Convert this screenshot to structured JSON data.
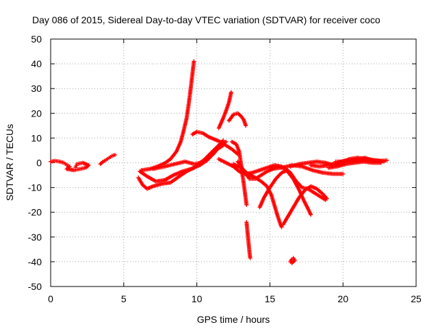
{
  "chart_data": {
    "type": "scatter",
    "title": "Day 086 of 2015, Sidereal Day-to-day VTEC variation (SDTVAR) for receiver coco",
    "xlabel": "GPS time / hours",
    "ylabel": "SDTVAR / TECUs",
    "xlim": [
      0,
      25
    ],
    "ylim": [
      -50,
      50
    ],
    "xticks": [
      0,
      5,
      10,
      15,
      20,
      25
    ],
    "yticks": [
      -50,
      -40,
      -30,
      -20,
      -10,
      0,
      10,
      20,
      30,
      40,
      50
    ],
    "grid": true,
    "marker": "+",
    "color": "#ff0000",
    "series": [
      {
        "name": "arc-early",
        "points": [
          [
            0.0,
            0.5
          ],
          [
            0.3,
            0.8
          ],
          [
            0.6,
            0.5
          ],
          [
            0.9,
            0.0
          ],
          [
            1.1,
            -0.8
          ],
          [
            1.3,
            -1.5
          ],
          [
            1.1,
            -2.5
          ],
          [
            1.6,
            -3.0
          ],
          [
            2.0,
            -2.5
          ],
          [
            2.4,
            -2.0
          ],
          [
            2.6,
            -1.0
          ],
          [
            2.2,
            0.0
          ],
          [
            1.8,
            -0.5
          ],
          [
            1.7,
            -1.8
          ]
        ]
      },
      {
        "name": "arc-4h",
        "points": [
          [
            3.4,
            -0.5
          ],
          [
            3.6,
            0.5
          ],
          [
            3.8,
            1.2
          ],
          [
            4.0,
            2.0
          ],
          [
            4.2,
            2.8
          ],
          [
            4.4,
            3.2
          ]
        ]
      },
      {
        "name": "arc-rise-40",
        "points": [
          [
            6.2,
            -3.0
          ],
          [
            6.8,
            -2.5
          ],
          [
            7.3,
            -1.5
          ],
          [
            7.8,
            -0.2
          ],
          [
            8.2,
            1.5
          ],
          [
            8.6,
            4.5
          ],
          [
            8.9,
            8.5
          ],
          [
            9.1,
            13.0
          ],
          [
            9.3,
            18.0
          ],
          [
            9.45,
            24.0
          ],
          [
            9.6,
            31.0
          ],
          [
            9.7,
            36.0
          ],
          [
            9.8,
            41.0
          ]
        ]
      },
      {
        "name": "arc-bottom-a",
        "points": [
          [
            6.0,
            -6.0
          ],
          [
            6.3,
            -9.0
          ],
          [
            6.6,
            -10.5
          ],
          [
            7.0,
            -9.5
          ],
          [
            7.6,
            -8.5
          ],
          [
            8.2,
            -8.0
          ],
          [
            8.8,
            -5.5
          ],
          [
            9.3,
            -3.5
          ],
          [
            9.8,
            -2.0
          ],
          [
            10.3,
            0.0
          ],
          [
            10.8,
            3.0
          ],
          [
            11.4,
            6.5
          ],
          [
            11.8,
            9.0
          ]
        ]
      },
      {
        "name": "arc-bottom-b",
        "points": [
          [
            6.1,
            -3.5
          ],
          [
            6.6,
            -5.5
          ],
          [
            7.2,
            -7.5
          ],
          [
            7.8,
            -7.0
          ],
          [
            8.4,
            -5.0
          ],
          [
            9.0,
            -3.5
          ],
          [
            9.6,
            -2.5
          ],
          [
            10.2,
            -1.0
          ],
          [
            10.7,
            1.0
          ],
          [
            11.2,
            4.0
          ],
          [
            11.6,
            7.0
          ],
          [
            12.0,
            8.5
          ]
        ]
      },
      {
        "name": "arc-mid-c",
        "points": [
          [
            7.0,
            -2.5
          ],
          [
            7.8,
            -1.5
          ],
          [
            8.5,
            -0.5
          ],
          [
            9.2,
            0.5
          ],
          [
            9.8,
            -0.5
          ],
          [
            10.2,
            0.0
          ],
          [
            10.6,
            1.5
          ],
          [
            11.0,
            3.5
          ],
          [
            11.4,
            5.5
          ],
          [
            11.8,
            7.0
          ]
        ]
      },
      {
        "name": "arc-hump-13",
        "points": [
          [
            9.7,
            11.5
          ],
          [
            10.0,
            12.5
          ],
          [
            10.4,
            12.0
          ],
          [
            10.8,
            10.5
          ],
          [
            11.2,
            9.5
          ],
          [
            11.6,
            8.5
          ],
          [
            12.0,
            7.0
          ],
          [
            12.4,
            5.5
          ],
          [
            12.8,
            3.5
          ]
        ]
      },
      {
        "name": "arc-peak-28",
        "points": [
          [
            11.5,
            14.0
          ],
          [
            11.8,
            18.0
          ],
          [
            12.0,
            21.0
          ],
          [
            12.2,
            24.5
          ],
          [
            12.35,
            28.5
          ]
        ]
      },
      {
        "name": "arc-peak-20",
        "points": [
          [
            12.2,
            17.0
          ],
          [
            12.5,
            19.5
          ],
          [
            12.8,
            20.0
          ],
          [
            13.0,
            19.0
          ],
          [
            13.2,
            17.5
          ],
          [
            13.35,
            15.0
          ]
        ]
      },
      {
        "name": "arc-drop-a",
        "points": [
          [
            12.4,
            8.5
          ],
          [
            12.7,
            7.5
          ],
          [
            12.9,
            4.5
          ],
          [
            13.0,
            0.5
          ],
          [
            13.1,
            -4.0
          ],
          [
            13.2,
            -8.0
          ],
          [
            13.3,
            -12.5
          ],
          [
            13.4,
            -17.0
          ]
        ]
      },
      {
        "name": "arc-drop-b",
        "points": [
          [
            13.4,
            -24.0
          ],
          [
            13.45,
            -27.0
          ],
          [
            13.5,
            -30.0
          ],
          [
            13.55,
            -33.0
          ],
          [
            13.6,
            -36.0
          ],
          [
            13.65,
            -38.5
          ]
        ]
      },
      {
        "name": "arc-wave-a",
        "points": [
          [
            12.8,
            0.5
          ],
          [
            13.2,
            -3.0
          ],
          [
            13.6,
            -6.5
          ],
          [
            14.0,
            -6.5
          ],
          [
            14.4,
            -5.0
          ],
          [
            14.8,
            -3.5
          ],
          [
            15.2,
            -2.5
          ],
          [
            15.6,
            -1.5
          ],
          [
            16.0,
            -2.0
          ],
          [
            16.4,
            -4.0
          ],
          [
            16.8,
            -7.5
          ],
          [
            17.2,
            -10.0
          ],
          [
            17.6,
            -10.5
          ],
          [
            18.0,
            -12.0
          ],
          [
            18.4,
            -13.5
          ],
          [
            18.8,
            -15.0
          ]
        ]
      },
      {
        "name": "arc-wave-b",
        "points": [
          [
            11.5,
            1.5
          ],
          [
            12.0,
            0.0
          ],
          [
            12.5,
            -1.5
          ],
          [
            12.9,
            -3.5
          ],
          [
            13.3,
            -4.5
          ],
          [
            13.8,
            -4.0
          ],
          [
            14.3,
            -3.0
          ],
          [
            14.8,
            -2.0
          ],
          [
            15.3,
            -1.0
          ],
          [
            15.8,
            -1.5
          ],
          [
            16.2,
            -3.5
          ],
          [
            16.6,
            -6.5
          ],
          [
            17.0,
            -11.0
          ],
          [
            17.3,
            -15.0
          ],
          [
            17.6,
            -18.5
          ],
          [
            17.8,
            -21.0
          ]
        ]
      },
      {
        "name": "arc-drop-26",
        "points": [
          [
            12.5,
            -0.5
          ],
          [
            13.0,
            -2.0
          ],
          [
            13.5,
            -4.5
          ],
          [
            14.0,
            -6.0
          ],
          [
            14.4,
            -7.5
          ],
          [
            14.8,
            -9.5
          ],
          [
            15.1,
            -13.0
          ],
          [
            15.3,
            -17.0
          ],
          [
            15.5,
            -21.0
          ],
          [
            15.7,
            -24.5
          ],
          [
            15.8,
            -26.0
          ]
        ]
      },
      {
        "name": "arc-v-left",
        "points": [
          [
            14.3,
            -18.0
          ],
          [
            14.6,
            -14.0
          ],
          [
            15.0,
            -10.0
          ],
          [
            15.4,
            -6.5
          ],
          [
            15.8,
            -4.0
          ],
          [
            16.2,
            -3.0
          ]
        ]
      },
      {
        "name": "arc-v-right",
        "points": [
          [
            15.9,
            -25.0
          ],
          [
            16.2,
            -22.0
          ],
          [
            16.6,
            -18.0
          ],
          [
            17.0,
            -14.0
          ],
          [
            17.4,
            -11.0
          ],
          [
            17.8,
            -9.5
          ],
          [
            18.2,
            -10.5
          ],
          [
            18.6,
            -12.5
          ],
          [
            18.9,
            -14.5
          ]
        ]
      },
      {
        "name": "arc-late-low",
        "points": [
          [
            15.0,
            -2.5
          ],
          [
            15.8,
            -2.0
          ],
          [
            16.5,
            -1.0
          ],
          [
            17.2,
            -1.5
          ],
          [
            17.9,
            -3.0
          ],
          [
            18.6,
            -4.0
          ],
          [
            19.3,
            -4.5
          ],
          [
            20.0,
            -4.5
          ]
        ]
      },
      {
        "name": "arc-late-high",
        "points": [
          [
            16.4,
            -1.5
          ],
          [
            17.0,
            -0.5
          ],
          [
            17.6,
            0.0
          ],
          [
            18.2,
            0.5
          ],
          [
            18.8,
            0.0
          ],
          [
            19.4,
            -1.0
          ],
          [
            19.9,
            -0.5
          ],
          [
            20.4,
            1.5
          ],
          [
            21.0,
            2.0
          ],
          [
            21.6,
            1.5
          ],
          [
            22.2,
            1.0
          ],
          [
            22.8,
            0.5
          ]
        ]
      },
      {
        "name": "arc-late-flat",
        "points": [
          [
            17.8,
            -1.0
          ],
          [
            18.4,
            -1.5
          ],
          [
            19.0,
            -1.0
          ],
          [
            19.6,
            0.0
          ],
          [
            20.2,
            1.0
          ],
          [
            20.8,
            0.5
          ],
          [
            21.4,
            0.8
          ],
          [
            22.0,
            1.0
          ],
          [
            22.6,
            0.8
          ],
          [
            23.0,
            1.0
          ]
        ]
      },
      {
        "name": "arc-tail-a",
        "points": [
          [
            19.5,
            0.5
          ],
          [
            20.0,
            0.5
          ],
          [
            20.5,
            1.0
          ],
          [
            21.0,
            1.5
          ],
          [
            21.5,
            2.0
          ],
          [
            22.0,
            1.0
          ],
          [
            22.5,
            0.5
          ]
        ]
      },
      {
        "name": "arc-tail-b",
        "points": [
          [
            19.0,
            -2.0
          ],
          [
            19.6,
            -1.5
          ],
          [
            20.2,
            -0.5
          ],
          [
            20.8,
            0.0
          ],
          [
            21.4,
            0.5
          ],
          [
            22.0,
            0.0
          ],
          [
            22.6,
            0.0
          ]
        ]
      },
      {
        "name": "blob-40",
        "points": [
          [
            16.4,
            -40.0
          ],
          [
            16.5,
            -39.0
          ],
          [
            16.6,
            -38.5
          ],
          [
            16.7,
            -39.5
          ],
          [
            16.5,
            -40.5
          ]
        ]
      }
    ]
  }
}
